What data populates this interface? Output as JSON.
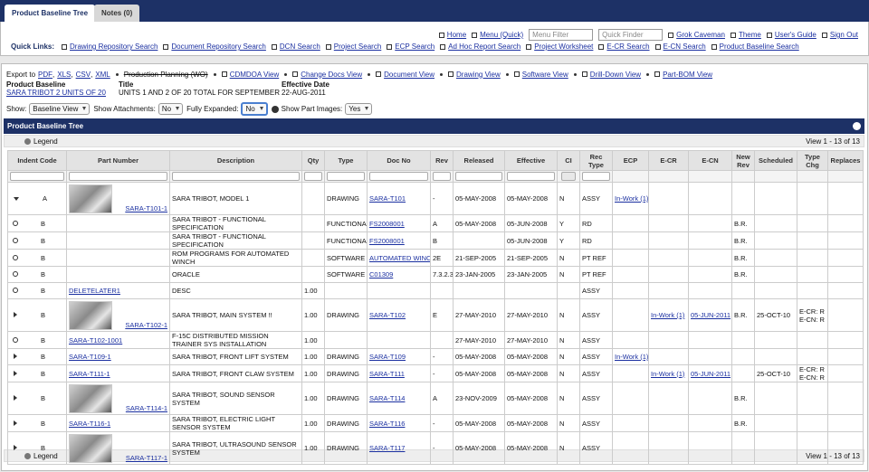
{
  "tabs": [
    "Product Baseline Tree",
    "Notes (0)"
  ],
  "nav": {
    "links": [
      "Home",
      "Menu (Quick)"
    ],
    "inputs": [
      "Menu Filter",
      "Quick Finder"
    ],
    "user_links": [
      "Grok Caveman",
      "Theme",
      "User's Guide",
      "Sign Out"
    ]
  },
  "quick_links": {
    "label": "Quick Links:",
    "links": [
      "Drawing Repository Search",
      "Document Repository Search",
      "DCN Search",
      "Project Search",
      "ECP Search",
      "Ad Hoc Report Search",
      "Project Worksheet",
      "E-CR Search",
      "E-CN Search",
      "Product Baseline Search"
    ]
  },
  "export": {
    "label": "Export to",
    "formats": [
      "PDF",
      "XLS",
      "CSV",
      "XML"
    ],
    "format_separator": ",",
    "disabled": "Production Planning (WO)",
    "views": [
      "CDMDOA View",
      "Change Docs View",
      "Document View",
      "Drawing View",
      "Software View",
      "Drill-Down View",
      "Part-BOM View"
    ]
  },
  "header": {
    "fields": [
      {
        "label": "Product Baseline",
        "value": "SARA TRIBOT 2 UNITS OF 20"
      },
      {
        "label": "Title",
        "value": "UNITS 1 AND 2 OF 20 TOTAL FOR SEPTEMBER"
      },
      {
        "label": "Effective Date",
        "value": "22-AUG-2011"
      }
    ]
  },
  "controls": [
    {
      "label": "Show:",
      "value": "Baseline View"
    },
    {
      "label": "Show Attachments:",
      "value": "No"
    },
    {
      "label": "Fully Expanded:",
      "value": "No"
    },
    {
      "label": "Show Part Images:",
      "value": "Yes"
    }
  ],
  "panel": {
    "title": "Product Baseline Tree",
    "legend": "Legend",
    "pager": "View 1 - 13 of 13"
  },
  "table": {
    "columns": [
      "Indent Code",
      "Part Number",
      "Description",
      "Qty",
      "Type",
      "Doc No",
      "Rev",
      "Released",
      "Effective",
      "CI",
      "Rec Type",
      "ECP",
      "E-CR",
      "E-CN",
      "New Rev",
      "Scheduled",
      "Type Chg",
      "Replaces"
    ],
    "link_columns": [
      1,
      5,
      11,
      12,
      13
    ],
    "rows": [
      {
        "toggle": "expanded",
        "image": true,
        "cells": [
          "A",
          "SARA-T101-1",
          "SARA TRIBOT, MODEL 1",
          null,
          "DRAWING",
          "SARA-T101",
          "-",
          "05-MAY-2008",
          "05-MAY-2008",
          "N",
          "ASSY",
          "In-Work (1)",
          null,
          null,
          null,
          null,
          null,
          null
        ]
      },
      {
        "toggle": "leaf",
        "image": false,
        "cells": [
          "B",
          null,
          "SARA TRIBOT - FUNCTIONAL SPECIFICATION",
          null,
          "FUNCTIONA",
          "FS2008001",
          "A",
          "05-MAY-2008",
          "05-JUN-2008",
          "Y",
          "RD",
          null,
          null,
          null,
          "B.R.",
          null,
          null,
          null
        ]
      },
      {
        "toggle": "leaf",
        "image": false,
        "cells": [
          "B",
          null,
          "SARA TRIBOT - FUNCTIONAL SPECIFICATION",
          null,
          "FUNCTIONA",
          "FS2008001",
          "B",
          null,
          "05-JUN-2008",
          "Y",
          "RD",
          null,
          null,
          null,
          "B.R.",
          null,
          null,
          null
        ]
      },
      {
        "toggle": "leaf",
        "image": false,
        "cells": [
          "B",
          null,
          "ROM PROGRAMS FOR AUTOMATED WINCH",
          null,
          "SOFTWARE",
          "AUTOMATED WINC",
          "2E",
          "21-SEP-2005",
          "21-SEP-2005",
          "N",
          "PT REF",
          null,
          null,
          null,
          "B.R.",
          null,
          null,
          null
        ]
      },
      {
        "toggle": "leaf",
        "image": false,
        "cells": [
          "B",
          null,
          "ORACLE",
          null,
          "SOFTWARE",
          "C01309",
          "7.3.2.3",
          "23-JAN-2005",
          "23-JAN-2005",
          "N",
          "PT REF",
          null,
          null,
          null,
          "B.R.",
          null,
          null,
          null
        ]
      },
      {
        "toggle": "leaf",
        "image": false,
        "cells": [
          "B",
          "DELETELATER1",
          "DESC",
          "1.00",
          null,
          null,
          null,
          null,
          null,
          null,
          "ASSY",
          null,
          null,
          null,
          null,
          null,
          null,
          null
        ]
      },
      {
        "toggle": "collapsed",
        "image": true,
        "cells": [
          "B",
          "SARA-T102-1",
          "SARA TRIBOT, MAIN SYSTEM !!",
          "1.00",
          "DRAWING",
          "SARA-T102",
          "E",
          "27-MAY-2010",
          "27-MAY-2010",
          "N",
          "ASSY",
          null,
          "In-Work (1)",
          "05-JUN-2011",
          "B.R.",
          "25-OCT-10",
          [
            "E-CR: R",
            "E-CN: R"
          ],
          null
        ]
      },
      {
        "toggle": "leaf",
        "image": false,
        "cells": [
          "B",
          "SARA-T102-1001",
          "F-15C DISTRIBUTED MISSION TRAINER SYS INSTALLATION",
          "1.00",
          null,
          null,
          null,
          "27-MAY-2010",
          "27-MAY-2010",
          "N",
          "ASSY",
          null,
          null,
          null,
          null,
          null,
          null,
          null
        ]
      },
      {
        "toggle": "collapsed",
        "image": false,
        "cells": [
          "B",
          "SARA-T109-1",
          "SARA TRIBOT, FRONT LIFT SYSTEM",
          "1.00",
          "DRAWING",
          "SARA-T109",
          "-",
          "05-MAY-2008",
          "05-MAY-2008",
          "N",
          "ASSY",
          "In-Work (1)",
          null,
          null,
          null,
          null,
          null,
          null
        ]
      },
      {
        "toggle": "collapsed",
        "image": false,
        "cells": [
          "B",
          "SARA-T111-1",
          "SARA TRIBOT, FRONT CLAW SYSTEM",
          "1.00",
          "DRAWING",
          "SARA-T111",
          "-",
          "05-MAY-2008",
          "05-MAY-2008",
          "N",
          "ASSY",
          null,
          "In-Work (1)",
          "05-JUN-2011",
          null,
          "25-OCT-10",
          [
            "E-CR: R",
            "E-CN: R"
          ],
          null
        ]
      },
      {
        "toggle": "collapsed",
        "image": true,
        "cells": [
          "B",
          "SARA-T114-1",
          "SARA TRIBOT, SOUND SENSOR SYSTEM",
          "1.00",
          "DRAWING",
          "SARA-T114",
          "A",
          "23-NOV-2009",
          "05-MAY-2008",
          "N",
          "ASSY",
          null,
          null,
          null,
          "B.R.",
          null,
          null,
          null
        ]
      },
      {
        "toggle": "collapsed",
        "image": false,
        "cells": [
          "B",
          "SARA-T116-1",
          "SARA TRIBOT, ELECTRIC LIGHT SENSOR SYSTEM",
          "1.00",
          "DRAWING",
          "SARA-T116",
          "-",
          "05-MAY-2008",
          "05-MAY-2008",
          "N",
          "ASSY",
          null,
          null,
          null,
          "B.R.",
          null,
          null,
          null
        ]
      },
      {
        "toggle": "collapsed",
        "image": true,
        "cells": [
          "B",
          "SARA-T117-1",
          "SARA TRIBOT, ULTRASOUND SENSOR SYSTEM",
          "1.00",
          "DRAWING",
          "SARA-T117",
          "-",
          "05-MAY-2008",
          "05-MAY-2008",
          "N",
          "ASSY",
          null,
          null,
          null,
          null,
          null,
          null,
          null
        ]
      }
    ]
  }
}
